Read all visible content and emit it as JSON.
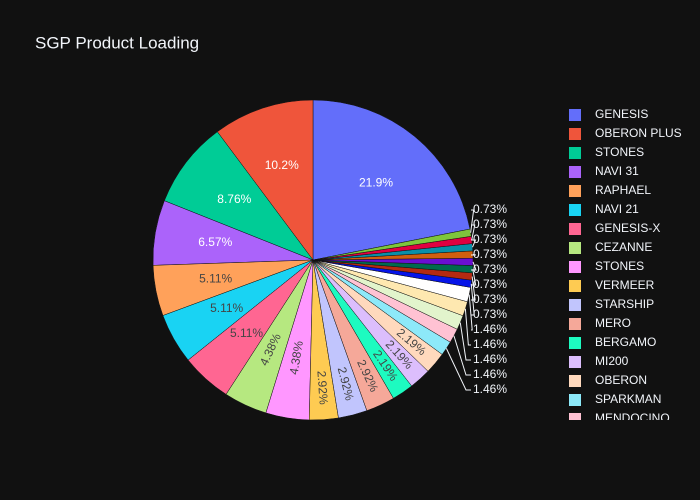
{
  "chart_data": {
    "type": "pie",
    "title": "SGP Product Loading",
    "categories": [
      "GENESIS",
      "OBERON PLUS",
      "STONES",
      "NAVI 31",
      "RAPHAEL",
      "NAVI 21",
      "GENESIS-X",
      "CEZANNE",
      "STONES",
      "VERMEER",
      "STARSHIP",
      "MERO",
      "BERGAMO",
      "MI200",
      "OBERON",
      "SPARKMAN",
      "MENDOCINO",
      null,
      null,
      null,
      null,
      null,
      null,
      null,
      null,
      null,
      null,
      null
    ],
    "values": [
      21.9,
      10.2,
      8.76,
      6.57,
      5.11,
      5.11,
      5.11,
      4.38,
      4.38,
      2.92,
      2.92,
      2.92,
      2.19,
      2.19,
      2.19,
      1.46,
      1.46,
      1.46,
      1.46,
      1.46,
      0.73,
      0.73,
      0.73,
      0.73,
      0.73,
      0.73,
      0.73,
      0.73
    ],
    "value_labels": [
      "21.9%",
      "10.2%",
      "8.76%",
      "6.57%",
      "5.11%",
      "5.11%",
      "5.11%",
      "4.38%",
      "4.38%",
      "2.92%",
      "2.92%",
      "2.92%",
      "2.19%",
      "2.19%",
      "2.19%",
      "1.46%",
      "1.46%",
      "1.46%",
      "1.46%",
      "1.46%",
      "0.73%",
      "0.73%",
      "0.73%",
      "0.73%",
      "0.73%",
      "0.73%",
      "0.73%",
      "0.73%"
    ],
    "colors": [
      "#636efa",
      "#ef553b",
      "#00cc96",
      "#ab63fa",
      "#ffa15a",
      "#19d3f3",
      "#ff6692",
      "#b6e880",
      "#ff97ff",
      "#fecb52",
      "#c1c5fd",
      "#f5a899",
      "#1dfbc0",
      "#dcbefd",
      "#ffd9bd",
      "#8de9f9",
      "#ffc2d3",
      "#e2f4cc",
      "#fee8b0",
      "#ffffff",
      "#0614e8",
      "#b42a12",
      "#006a4e",
      "#6a0fd2",
      "#d05f0e",
      "#0a8fa8",
      "#e00040",
      "#7ec63c"
    ],
    "legend": "right"
  }
}
